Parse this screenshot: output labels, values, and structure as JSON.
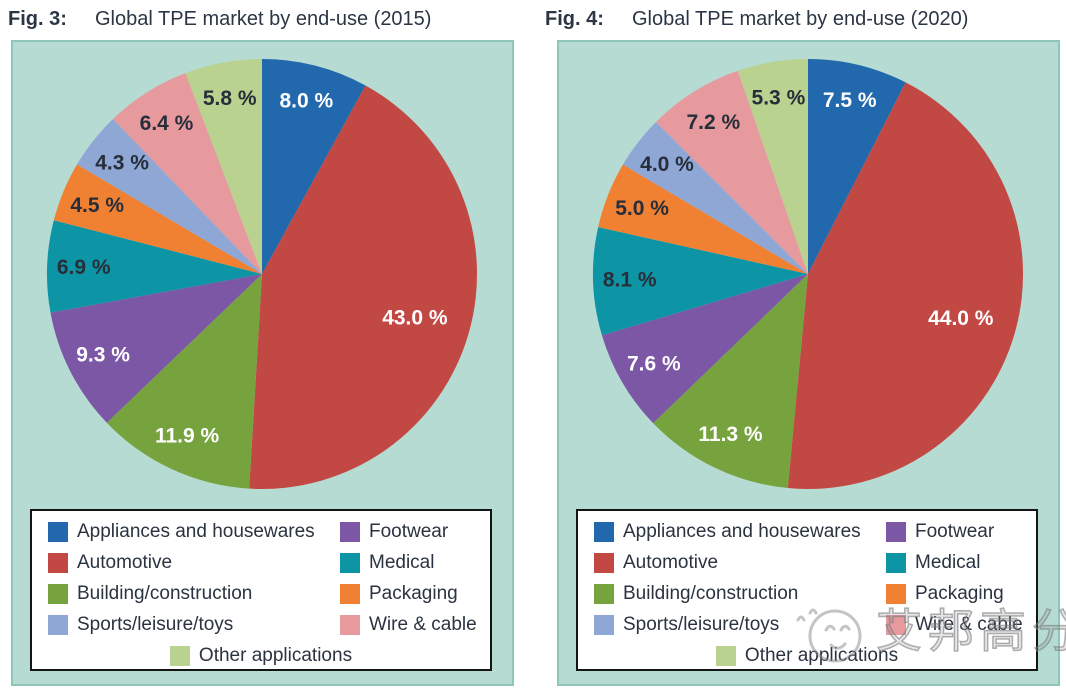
{
  "colors": {
    "panel_background": "#b5dbd3",
    "panel_border": "#8fc6bb",
    "legend_background": "#ffffff",
    "legend_border": "#141414",
    "title_text": "#2b3645",
    "label_dark": "#272e3a",
    "label_light": "#ffffff"
  },
  "categories": [
    "Appliances and housewares",
    "Automotive",
    "Building/construction",
    "Footwear",
    "Medical",
    "Packaging",
    "Sports/leisure/toys",
    "Wire & cable",
    "Other applications"
  ],
  "slice_colors": [
    "#2168ad",
    "#c24844",
    "#77a33e",
    "#7c57a5",
    "#0d95a6",
    "#f08133",
    "#8fa7d4",
    "#e69a9e",
    "#b9d28f"
  ],
  "legend": {
    "rows": [
      [
        0,
        3
      ],
      [
        1,
        4
      ],
      [
        2,
        5
      ],
      [
        6,
        7
      ],
      [
        8
      ]
    ]
  },
  "chart_data": [
    {
      "type": "pie",
      "fig_label": "Fig. 3:",
      "title": "Global TPE market by end-use (2015)",
      "start_angle_deg": 0,
      "direction": "clockwise",
      "unit": "%",
      "legend_position": "bottom",
      "categories": [
        "Appliances and housewares",
        "Automotive",
        "Building/construction",
        "Footwear",
        "Medical",
        "Packaging",
        "Sports/leisure/toys",
        "Wire & cable",
        "Other applications"
      ],
      "values": [
        8.0,
        43.0,
        11.9,
        9.3,
        6.9,
        4.5,
        4.3,
        6.4,
        5.8
      ],
      "labels": [
        "8.0 %",
        "43.0 %",
        "11.9 %",
        "9.3 %",
        "6.9 %",
        "4.5 %",
        "4.3 %",
        "6.4 %",
        "5.8 %"
      ],
      "label_colors": [
        "#ffffff",
        "#ffffff",
        "#ffffff",
        "#ffffff",
        "#272e3a",
        "#272e3a",
        "#272e3a",
        "#272e3a",
        "#272e3a"
      ]
    },
    {
      "type": "pie",
      "fig_label": "Fig. 4:",
      "title": "Global TPE market by end-use (2020)",
      "start_angle_deg": 0,
      "direction": "clockwise",
      "unit": "%",
      "legend_position": "bottom",
      "categories": [
        "Appliances and housewares",
        "Automotive",
        "Building/construction",
        "Footwear",
        "Medical",
        "Packaging",
        "Sports/leisure/toys",
        "Wire & cable",
        "Other applications"
      ],
      "values": [
        7.5,
        44.0,
        11.3,
        7.6,
        8.1,
        5.0,
        4.0,
        7.2,
        5.3
      ],
      "labels": [
        "7.5 %",
        "44.0 %",
        "11.3 %",
        "7.6 %",
        "8.1 %",
        "5.0 %",
        "4.0 %",
        "7.2 %",
        "5.3 %"
      ],
      "label_colors": [
        "#ffffff",
        "#ffffff",
        "#ffffff",
        "#ffffff",
        "#272e3a",
        "#272e3a",
        "#272e3a",
        "#272e3a",
        "#272e3a"
      ]
    }
  ],
  "watermark": {
    "text": "艾邦高分子",
    "icon": "smiley-face-logo"
  }
}
